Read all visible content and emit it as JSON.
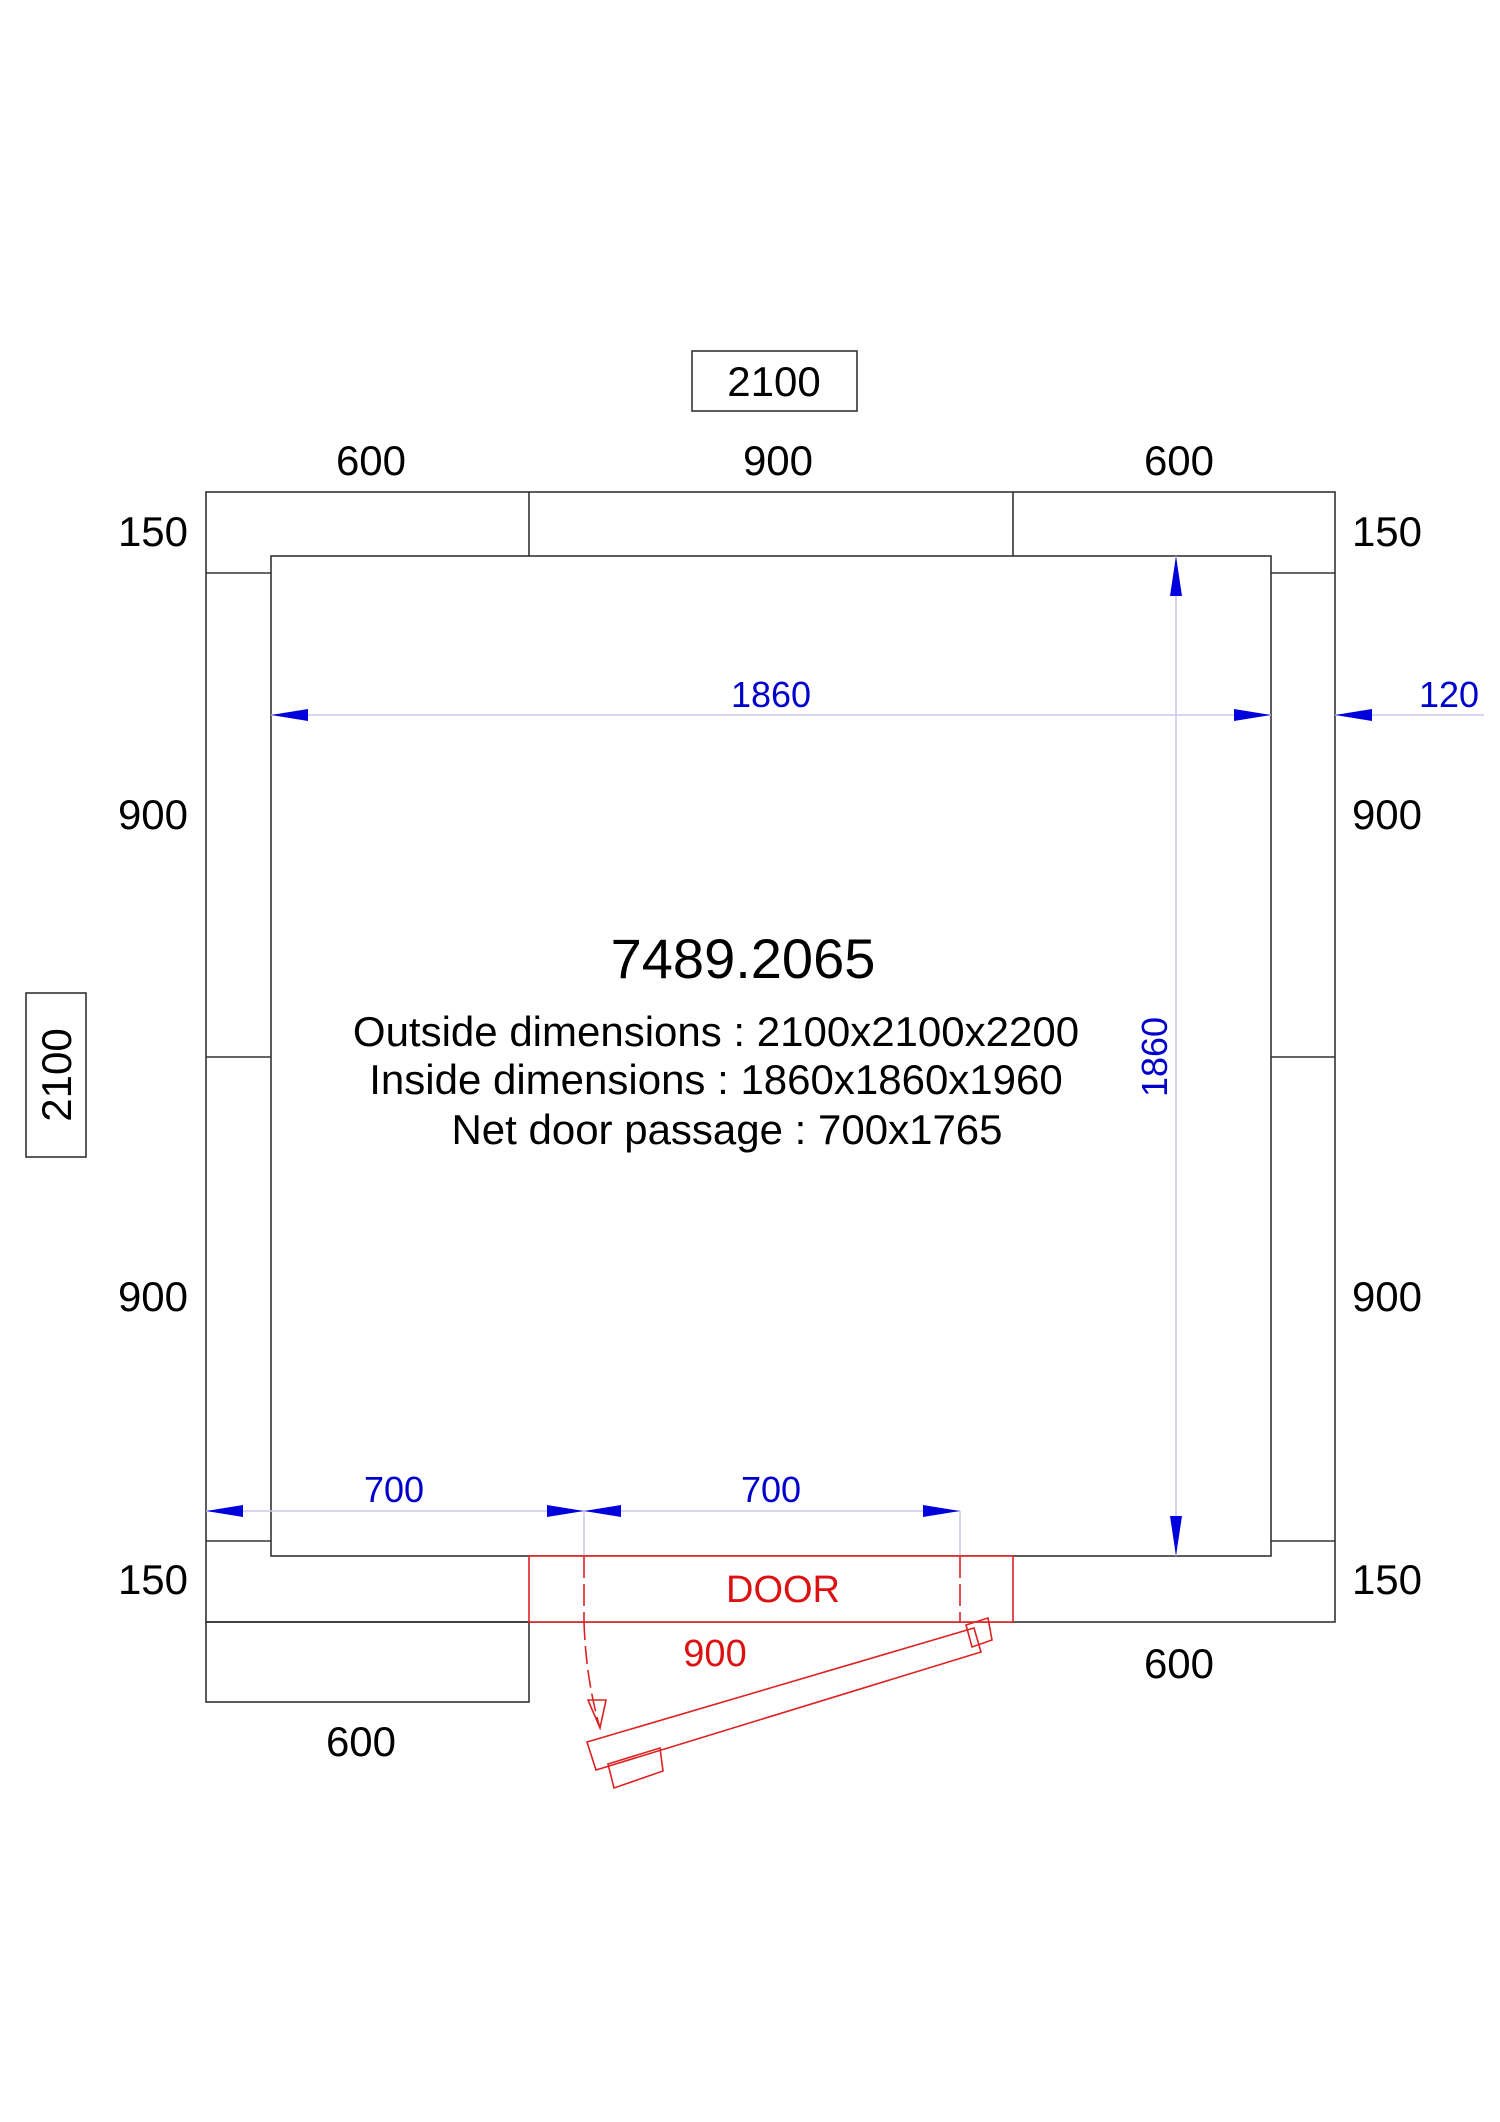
{
  "title_number": "7489.2065",
  "specs": {
    "outside": "Outside dimensions : 2100x2100x2200",
    "inside": "Inside dimensions :  1860x1860x1960",
    "door": "Net door passage : 700x1765"
  },
  "overall": {
    "width": "2100",
    "depth": "2100"
  },
  "top_panels": [
    "600",
    "900",
    "600"
  ],
  "left_panels": [
    "150",
    "900",
    "900",
    "150"
  ],
  "right_panels": [
    "150",
    "900",
    "900",
    "150"
  ],
  "bottom_panels": {
    "left": "600",
    "right": "600",
    "door_panel": "900"
  },
  "inner_dims": {
    "width": "1860",
    "depth": "1860",
    "wall": "120",
    "offset": "700",
    "door_width": "700"
  },
  "door_label": "DOOR",
  "colors": {
    "dimension": "#0000cc",
    "door": "#dd1111",
    "lines": "#333333"
  }
}
